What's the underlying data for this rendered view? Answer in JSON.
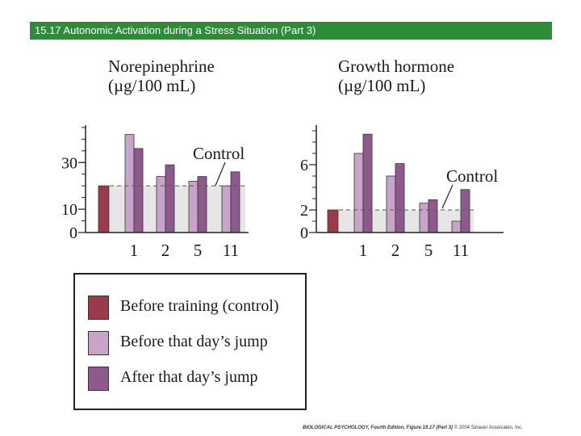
{
  "header": {
    "title": "15.17  Autonomic Activation during a Stress Situation (Part 3)"
  },
  "colors": {
    "header_bg": "#2e8b3a",
    "control": "#9b3a4a",
    "before_jump": "#c8a4c8",
    "after_jump": "#8e5a8e",
    "control_band": "#e6e6e6"
  },
  "legend": {
    "items": [
      {
        "label": "Before training (control)",
        "color": "#9b3a4a"
      },
      {
        "label": "Before that day’s jump",
        "color": "#c8a4c8"
      },
      {
        "label": "After that day’s jump",
        "color": "#8e5a8e"
      }
    ]
  },
  "footer": {
    "book": "BIOLOGICAL PSYCHOLOGY, Fourth Edition, Figure 15.17 (Part 3)",
    "copyright": "© 2004 Sinauer Associates, Inc."
  },
  "chart_data": [
    {
      "type": "bar",
      "title_line1": "Norepinephrine",
      "title_line2": "(µg/100 mL)",
      "categories": [
        "1",
        "2",
        "5",
        "11"
      ],
      "control_value": 20,
      "control_label": "Control",
      "series": [
        {
          "name": "Before that day’s jump",
          "values": [
            42,
            24,
            22,
            20
          ]
        },
        {
          "name": "After that day’s jump",
          "values": [
            36,
            29,
            24,
            26
          ]
        }
      ],
      "yticks": [
        0,
        10,
        30
      ],
      "ylim": [
        0,
        46
      ]
    },
    {
      "type": "bar",
      "title_line1": "Growth hormone",
      "title_line2": "(µg/100 mL)",
      "categories": [
        "1",
        "2",
        "5",
        "11"
      ],
      "control_value": 2,
      "control_label": "Control",
      "series": [
        {
          "name": "Before that day’s jump",
          "values": [
            7,
            5,
            2.6,
            1
          ]
        },
        {
          "name": "After that day’s jump",
          "values": [
            8.7,
            6.1,
            2.9,
            3.8
          ]
        }
      ],
      "yticks": [
        0,
        2,
        6
      ],
      "ylim": [
        0,
        9.5
      ]
    }
  ]
}
